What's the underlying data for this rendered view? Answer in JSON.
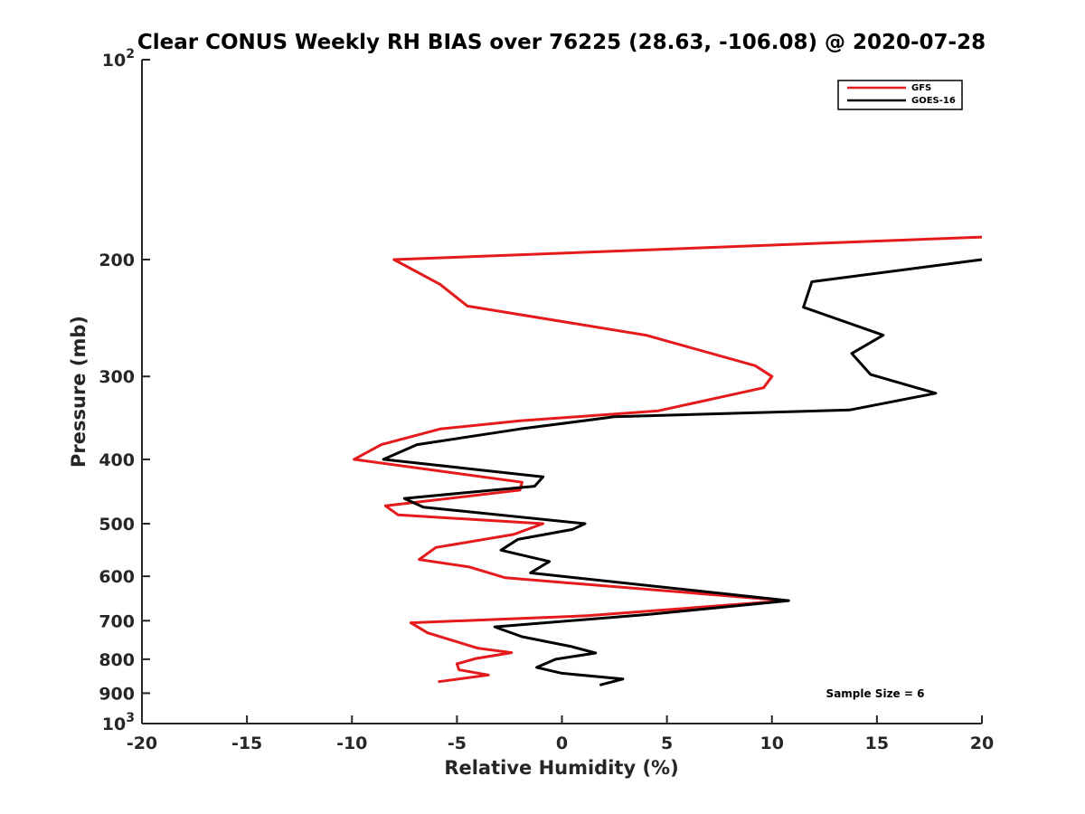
{
  "chart_data": {
    "type": "line",
    "title": "Clear CONUS Weekly RH BIAS over 76225 (28.63, -106.08) @ 2020-07-28",
    "xlabel": "Relative Humidity (%)",
    "ylabel": "Pressure (mb)",
    "xlim": [
      -20,
      20
    ],
    "ylim": [
      100,
      1000
    ],
    "y_scale": "log",
    "y_reversed": true,
    "x_ticks": [
      "-20",
      "-15",
      "-10",
      "-5",
      "0",
      "5",
      "10",
      "15",
      "20"
    ],
    "y_ticks": [
      {
        "value": 200,
        "label": "200"
      },
      {
        "value": 300,
        "label": "300"
      },
      {
        "value": 400,
        "label": "400"
      },
      {
        "value": 500,
        "label": "500"
      },
      {
        "value": 600,
        "label": "600"
      },
      {
        "value": 700,
        "label": "700"
      },
      {
        "value": 800,
        "label": "800"
      },
      {
        "value": 900,
        "label": "900"
      }
    ],
    "y_power_ticks": [
      {
        "value": 100,
        "base": "10",
        "exp": "2"
      },
      {
        "value": 1000,
        "base": "10",
        "exp": "3"
      }
    ],
    "grid": false,
    "legend_position": "top-right",
    "annotation": "Sample Size = 6",
    "series": [
      {
        "name": "GFS",
        "color": "#e41a1c",
        "points": [
          [
            20.0,
            185
          ],
          [
            -8.0,
            200
          ],
          [
            -5.8,
            218
          ],
          [
            -4.5,
            235
          ],
          [
            4.0,
            260
          ],
          [
            9.2,
            289
          ],
          [
            10.0,
            300
          ],
          [
            9.6,
            312
          ],
          [
            4.6,
            338
          ],
          [
            -2.0,
            350
          ],
          [
            -5.8,
            360
          ],
          [
            -8.6,
            380
          ],
          [
            -9.9,
            400
          ],
          [
            -1.9,
            433
          ],
          [
            -2.0,
            445
          ],
          [
            -8.4,
            470
          ],
          [
            -7.8,
            485
          ],
          [
            -0.9,
            500
          ],
          [
            -2.3,
            519
          ],
          [
            -6.0,
            543
          ],
          [
            -6.8,
            566
          ],
          [
            -4.4,
            581
          ],
          [
            -2.7,
            603
          ],
          [
            10.7,
            653
          ],
          [
            1.2,
            688
          ],
          [
            -7.2,
            705
          ],
          [
            -6.4,
            730
          ],
          [
            -4.0,
            770
          ],
          [
            -2.4,
            782
          ],
          [
            -4.1,
            798
          ],
          [
            -5.0,
            813
          ],
          [
            -4.9,
            830
          ],
          [
            -3.5,
            845
          ],
          [
            -5.9,
            865
          ]
        ]
      },
      {
        "name": "GOES-16",
        "color": "#000000",
        "points": [
          [
            20.0,
            200
          ],
          [
            11.9,
            216
          ],
          [
            11.5,
            236
          ],
          [
            15.3,
            260
          ],
          [
            13.8,
            277
          ],
          [
            14.7,
            298
          ],
          [
            17.8,
            318
          ],
          [
            13.7,
            337
          ],
          [
            2.5,
            345
          ],
          [
            -2.0,
            360
          ],
          [
            -6.9,
            380
          ],
          [
            -8.5,
            400
          ],
          [
            -0.9,
            425
          ],
          [
            -1.3,
            439
          ],
          [
            -7.5,
            458
          ],
          [
            -6.6,
            472
          ],
          [
            1.1,
            500
          ],
          [
            0.5,
            510
          ],
          [
            -2.1,
            528
          ],
          [
            -2.9,
            548
          ],
          [
            -0.6,
            570
          ],
          [
            -1.5,
            593
          ],
          [
            10.8,
            653
          ],
          [
            4.1,
            685
          ],
          [
            -3.2,
            715
          ],
          [
            -1.9,
            740
          ],
          [
            0.4,
            765
          ],
          [
            1.6,
            783
          ],
          [
            -0.3,
            800
          ],
          [
            -1.2,
            823
          ],
          [
            0.0,
            840
          ],
          [
            2.9,
            857
          ],
          [
            1.8,
            875
          ]
        ]
      }
    ]
  }
}
